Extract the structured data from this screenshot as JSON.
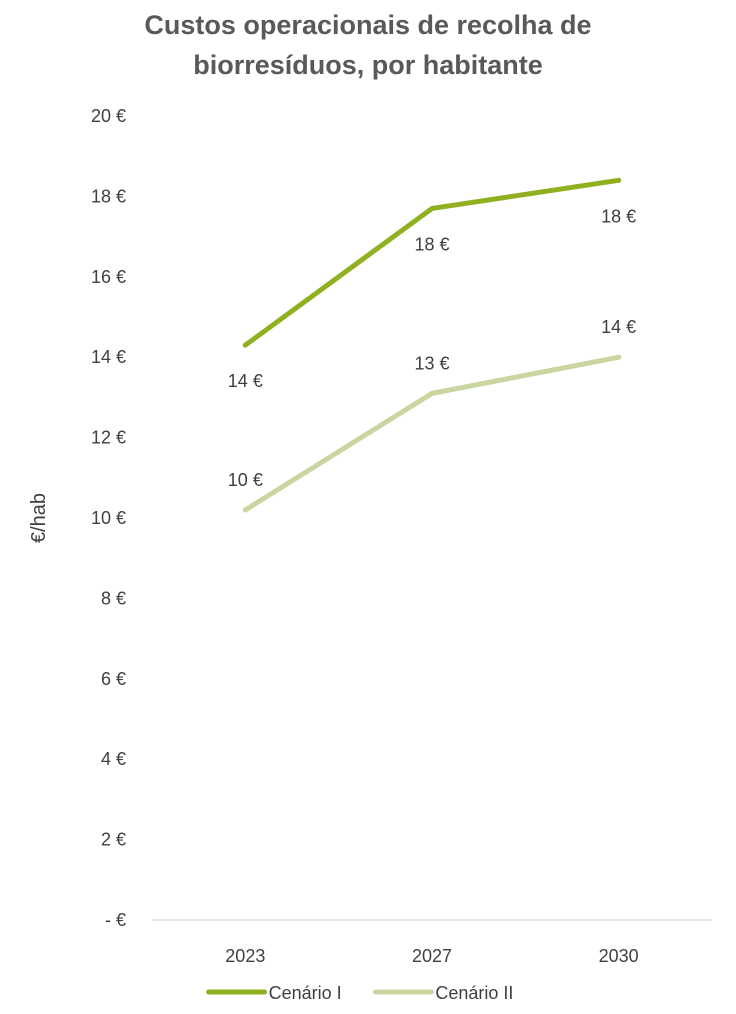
{
  "chart_data": {
    "type": "line",
    "title_line1": "Custos operacionais de recolha de",
    "title_line2": "biorresíduos, por habitante",
    "ylabel": "€/hab",
    "xlabel": "",
    "categories": [
      "2023",
      "2027",
      "2030"
    ],
    "ylim": [
      0,
      20
    ],
    "yticks": [
      {
        "value": 0,
        "label": "-  €"
      },
      {
        "value": 2,
        "label": "2 €"
      },
      {
        "value": 4,
        "label": "4 €"
      },
      {
        "value": 6,
        "label": "6 €"
      },
      {
        "value": 8,
        "label": "8 €"
      },
      {
        "value": 10,
        "label": "10 €"
      },
      {
        "value": 12,
        "label": "12 €"
      },
      {
        "value": 14,
        "label": "14 €"
      },
      {
        "value": 16,
        "label": "16 €"
      },
      {
        "value": 18,
        "label": "18 €"
      },
      {
        "value": 20,
        "label": "20 €"
      }
    ],
    "series": [
      {
        "name": "Cenário I",
        "color": "#8fb01f",
        "values": [
          14.3,
          17.7,
          18.4
        ],
        "labels": [
          "14 €",
          "18 €",
          "18 €"
        ],
        "label_position": "below"
      },
      {
        "name": "Cenário II",
        "color": "#c9d6a0",
        "values": [
          10.2,
          13.1,
          14.0
        ],
        "labels": [
          "10 €",
          "13 €",
          "14 €"
        ],
        "label_position": "above"
      }
    ],
    "grid": false,
    "legend": "bottom"
  }
}
